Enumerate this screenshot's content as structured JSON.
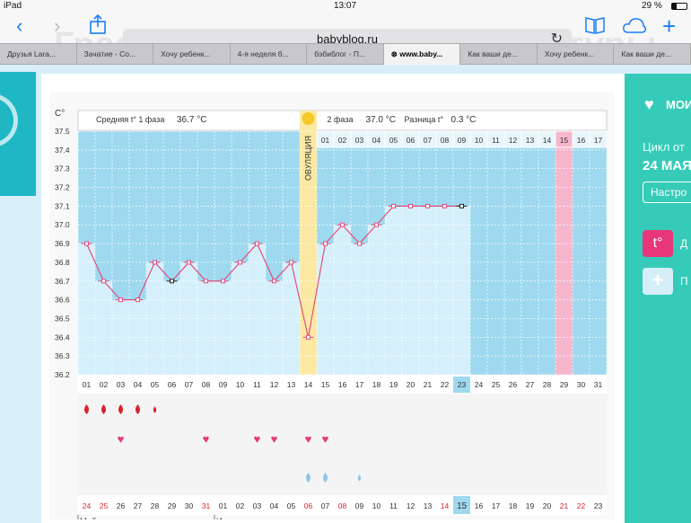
{
  "status_bar": {
    "carrier": "iPad",
    "time": "13:07",
    "battery": "29 %"
  },
  "browser": {
    "url": "babyblog.ru",
    "ghost_title": "Графики базальной температуры",
    "tabs": [
      "Друзья Lara...",
      "Зачатие - Со...",
      "Хочу ребенк...",
      "4-я неделя б...",
      "бэбиблог - П...",
      "www.baby...",
      "Как ваши де...",
      "Хочу ребенк...",
      "Как ваши де..."
    ],
    "active_tab": 5
  },
  "sidebar": {
    "my_label": "МОИ",
    "cycle_label": "Цикл от",
    "cycle_date": "24 МАЯ",
    "settings_label": "Настро",
    "temp_button": "t°",
    "temp_label": "Д",
    "add_button": "+",
    "add_label": "П"
  },
  "chart_data": {
    "type": "line",
    "y_unit": "C°",
    "ylim": [
      36.2,
      37.5
    ],
    "y_ticks": [
      "37.5",
      "37.4",
      "37.3",
      "37.2",
      "37.1",
      "37.0",
      "36.9",
      "36.8",
      "36.7",
      "36.6",
      "36.5",
      "36.4",
      "36.3",
      "36.2"
    ],
    "phase1_label": "Средняя t° 1 фаза",
    "phase1_value": "36.7 °C",
    "phase2_label": "2 фаза",
    "phase2_value": "37.0 °C",
    "diff_label": "Разница t°",
    "diff_value": "0.3 °C",
    "ovulation_label": "ОВУЛЯЦИЯ",
    "ovulation_day": 14,
    "cycle_days": [
      "01",
      "02",
      "03",
      "04",
      "05",
      "06",
      "07",
      "08",
      "09",
      "10",
      "11",
      "12",
      "13",
      "14",
      "15",
      "16",
      "17",
      "18",
      "19",
      "20",
      "21",
      "22",
      "23",
      "24",
      "25",
      "26",
      "27",
      "28",
      "29",
      "30",
      "31"
    ],
    "phase2_header_days": [
      "01",
      "02",
      "03",
      "04",
      "05",
      "06",
      "07",
      "08",
      "09",
      "10",
      "11",
      "12",
      "13",
      "14",
      "15",
      "16",
      "17"
    ],
    "current_day": 23,
    "pink_header_day": "15",
    "temperatures": [
      36.9,
      36.7,
      36.6,
      36.6,
      36.8,
      36.7,
      36.8,
      36.7,
      36.7,
      36.8,
      36.9,
      36.7,
      36.8,
      36.4,
      36.9,
      37.0,
      36.9,
      37.0,
      37.1,
      37.1,
      37.1,
      37.1,
      37.1
    ],
    "marked_days": [
      6,
      23
    ],
    "calendar_dates": [
      "24",
      "25",
      "26",
      "27",
      "28",
      "29",
      "30",
      "31",
      "01",
      "02",
      "03",
      "04",
      "05",
      "06",
      "07",
      "08",
      "09",
      "10",
      "11",
      "12",
      "13",
      "14",
      "15",
      "16",
      "17",
      "18",
      "19",
      "20",
      "21",
      "22",
      "23"
    ],
    "red_dates": [
      0,
      1,
      7,
      13,
      15,
      21,
      28,
      29
    ],
    "month_labels": [
      {
        "text": "Май",
        "col": 0
      },
      {
        "text": "Июнь",
        "col": 8
      }
    ],
    "bleeding_days": [
      1,
      2,
      3,
      4,
      5
    ],
    "heart_days": [
      3,
      8,
      11,
      12,
      14,
      15
    ],
    "drop_days": [
      14,
      15,
      17
    ]
  },
  "colors": {
    "plot_bg": "#9fd9ef",
    "line": "#e14f7d",
    "ovulation": "#fbe9a3",
    "pink_col": "#f6b6cc",
    "highlight": "#9fd9ef"
  }
}
